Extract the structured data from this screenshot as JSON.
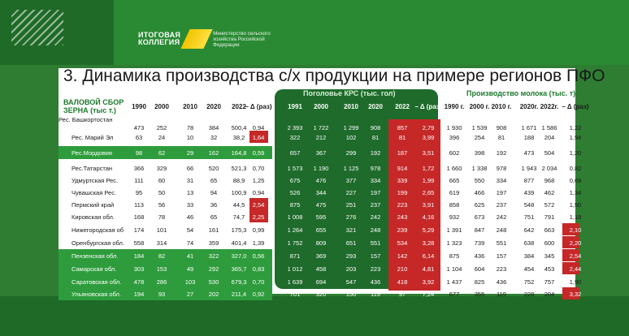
{
  "header": {
    "logo_line1": "ИТОГОВАЯ",
    "logo_line2": "КОЛЛЕГИЯ",
    "ministry": "Министерство сельского хозяйства Российской Федерации"
  },
  "slide": {
    "title": "3. Динамика производства с/х продукции на примере регионов ПФО"
  },
  "sections": {
    "grain": "ВАЛОВОЙ СБОР ЗЕРНА (тыс т.)",
    "krs": "Поголовье КРС (тыс. гол)",
    "milk": "Производство молока (тыс. т)"
  },
  "colors": {
    "brand_green": "#1e6b2b",
    "highlight_row": "#2e9c3c",
    "red": "#c62828",
    "accent_yellow": "#f2c400"
  },
  "headers": {
    "grain": [
      "1990",
      "2000",
      "2010",
      "2020",
      "2022",
      "– Δ (раз)"
    ],
    "krs": [
      "1991",
      "2000",
      "2010",
      "2020",
      "2022",
      "– Δ (раз)"
    ],
    "milk": [
      "1990 г.",
      "2000 г.",
      "2010 г.",
      "2020г.",
      "2022г.",
      "– Δ (раз)"
    ]
  },
  "rows": [
    {
      "name": "Рес. Башкортостан",
      "grain": [
        "473",
        "252",
        "78",
        "384",
        "500,4",
        "0,94"
      ],
      "krs": [
        "2 393",
        "1 722",
        "1 299",
        "908",
        "857",
        "2,79"
      ],
      "milk": [
        "1 930",
        "1 539",
        "908",
        "1 671",
        "1 586",
        "1,22"
      ]
    },
    {
      "name": "Рес. Марий Эл",
      "grain": [
        "63",
        "24",
        "10",
        "32",
        "38,2",
        "1,64"
      ],
      "krs": [
        "322",
        "212",
        "102",
        "81",
        "81",
        "3,99"
      ],
      "milk": [
        "396",
        "254",
        "81",
        "188",
        "204",
        "1,94"
      ]
    },
    {
      "name": "Рес.Мордовия",
      "grain": [
        "98",
        "62",
        "29",
        "162",
        "164,8",
        "0,59"
      ],
      "krs": [
        "657",
        "367",
        "299",
        "192",
        "187",
        "3,51"
      ],
      "milk": [
        "602",
        "398",
        "192",
        "473",
        "504",
        "1,20"
      ]
    },
    {
      "name": "Рес.Татарстан",
      "grain": [
        "366",
        "329",
        "66",
        "520",
        "521,3",
        "0,70"
      ],
      "krs": [
        "1 573",
        "1 190",
        "1 125",
        "978",
        "914",
        "1,72"
      ],
      "milk": [
        "1 660",
        "1 338",
        "978",
        "1 943",
        "2 034",
        "0,82"
      ]
    },
    {
      "name": "Удмуртская Рес.",
      "grain": [
        "111",
        "60",
        "31",
        "65",
        "88,9",
        "1,25"
      ],
      "krs": [
        "675",
        "476",
        "377",
        "334",
        "339",
        "1,99"
      ],
      "milk": [
        "665",
        "550",
        "334",
        "877",
        "968",
        "0,69"
      ]
    },
    {
      "name": "Чувашская Рес.",
      "grain": [
        "95",
        "50",
        "13",
        "94",
        "100,9",
        "0,94"
      ],
      "krs": [
        "526",
        "344",
        "227",
        "197",
        "199",
        "2,65"
      ],
      "milk": [
        "619",
        "466",
        "197",
        "439",
        "462",
        "1,34"
      ]
    },
    {
      "name": "Пермский край",
      "grain": [
        "113",
        "56",
        "33",
        "36",
        "44,5",
        "2,54"
      ],
      "krs": [
        "875",
        "475",
        "251",
        "237",
        "223",
        "3,91"
      ],
      "milk": [
        "858",
        "625",
        "237",
        "548",
        "572",
        "1,50"
      ]
    },
    {
      "name": "Кировская обл.",
      "grain": [
        "168",
        "78",
        "46",
        "65",
        "74,7",
        "2,25"
      ],
      "krs": [
        "1 008",
        "595",
        "276",
        "242",
        "243",
        "4,16"
      ],
      "milk": [
        "932",
        "673",
        "242",
        "751",
        "791",
        "1,18"
      ]
    },
    {
      "name": "Нижегородская об",
      "grain": [
        "174",
        "101",
        "54",
        "161",
        "175,3",
        "0,99"
      ],
      "krs": [
        "1 264",
        "655",
        "321",
        "248",
        "239",
        "5,29"
      ],
      "milk": [
        "1 391",
        "847",
        "248",
        "642",
        "663",
        "2,10"
      ]
    },
    {
      "name": "Оренбургская обл.",
      "grain": [
        "558",
        "314",
        "74",
        "359",
        "401,4",
        "1,39"
      ],
      "krs": [
        "1 752",
        "809",
        "651",
        "551",
        "534",
        "3,28"
      ],
      "milk": [
        "1 323",
        "739",
        "551",
        "638",
        "600",
        "2,20"
      ]
    },
    {
      "name": "Пензенская обл.",
      "grain": [
        "184",
        "82",
        "41",
        "322",
        "327,0",
        "0,56"
      ],
      "krs": [
        "871",
        "369",
        "293",
        "157",
        "142",
        "6,14"
      ],
      "milk": [
        "875",
        "436",
        "157",
        "384",
        "345",
        "2,54"
      ]
    },
    {
      "name": "Самарская обл.",
      "grain": [
        "303",
        "153",
        "49",
        "292",
        "365,7",
        "0,83"
      ],
      "krs": [
        "1 012",
        "458",
        "203",
        "223",
        "210",
        "4,81"
      ],
      "milk": [
        "1 104",
        "604",
        "223",
        "454",
        "453",
        "2,44"
      ]
    },
    {
      "name": "Саратовская обл.",
      "grain": [
        "478",
        "286",
        "103",
        "530",
        "679,3",
        "0,70"
      ],
      "krs": [
        "1 639",
        "694",
        "547",
        "436",
        "418",
        "3,92"
      ],
      "milk": [
        "1 437",
        "825",
        "436",
        "752",
        "757",
        "1,90"
      ]
    },
    {
      "name": "Ульяновская обл.",
      "grain": [
        "194",
        "93",
        "27",
        "202",
        "211,4",
        "0,92"
      ],
      "krs": [
        "701",
        "320",
        "150",
        "119",
        "97",
        "7,24"
      ],
      "milk": [
        "677",
        "355",
        "119",
        "228",
        "204",
        "3,32"
      ]
    }
  ]
}
